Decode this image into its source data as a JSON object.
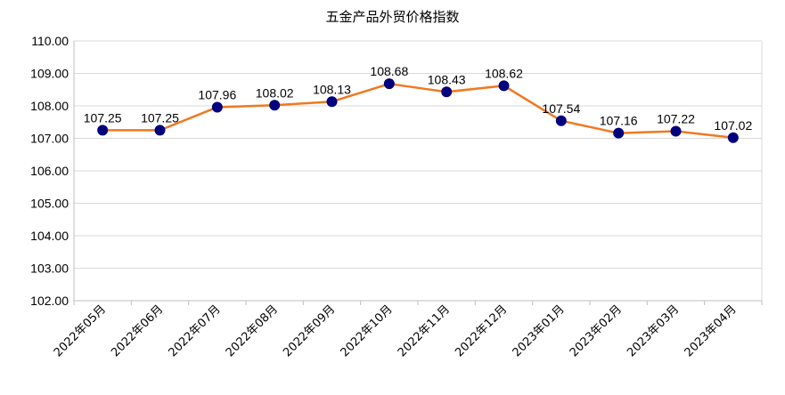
{
  "chart_data": {
    "type": "line",
    "title": "五金产品外贸价格指数",
    "xlabel": "",
    "ylabel": "",
    "categories": [
      "2022年05月",
      "2022年06月",
      "2022年07月",
      "2022年08月",
      "2022年09月",
      "2022年10月",
      "2022年11月",
      "2022年12月",
      "2023年01月",
      "2023年02月",
      "2023年03月",
      "2023年04月"
    ],
    "series": [
      {
        "values": [
          107.25,
          107.25,
          107.96,
          108.02,
          108.13,
          108.68,
          108.43,
          108.62,
          107.54,
          107.16,
          107.22,
          107.02
        ]
      }
    ],
    "ylim": [
      102,
      110
    ],
    "yticks": [
      "102.00",
      "103.00",
      "104.00",
      "105.00",
      "106.00",
      "107.00",
      "108.00",
      "109.00",
      "110.00"
    ],
    "data_labels": [
      "107.25",
      "107.25",
      "107.96",
      "108.02",
      "108.13",
      "108.68",
      "108.43",
      "108.62",
      "107.54",
      "107.16",
      "107.22",
      "107.02"
    ],
    "grid": true,
    "legend": "none",
    "colors": {
      "line": "#F07820",
      "marker": "#00007F",
      "grid": "#d9d9d9",
      "axis": "#bfbfbf"
    }
  }
}
